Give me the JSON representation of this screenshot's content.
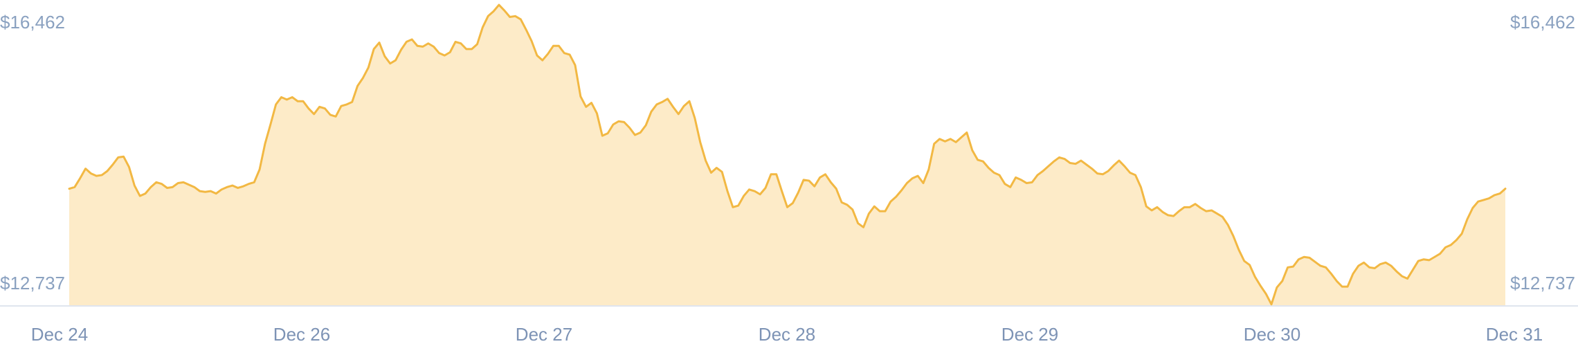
{
  "chart_data": {
    "type": "area",
    "title": "",
    "xlabel": "",
    "ylabel": "",
    "ylim": [
      12737,
      16462
    ],
    "y_tick_labels": {
      "top_left": "$16,462",
      "bottom_left": "$12,737",
      "top_right": "$16,462",
      "bottom_right": "$12,737"
    },
    "x_tick_labels": [
      "Dec 24",
      "Dec 26",
      "Dec 27",
      "Dec 28",
      "Dec 29",
      "Dec 30",
      "Dec 31"
    ],
    "colors": {
      "line": "#f2b843",
      "fill": "#fdebc8",
      "axis_text": "#8aa1c0",
      "baseline": "#dfe5ee"
    },
    "series": [
      {
        "values": [
          14180,
          14200,
          14310,
          14430,
          14370,
          14340,
          14350,
          14400,
          14480,
          14570,
          14580,
          14450,
          14220,
          14090,
          14120,
          14200,
          14260,
          14240,
          14190,
          14200,
          14250,
          14260,
          14230,
          14200,
          14150,
          14140,
          14150,
          14120,
          14170,
          14200,
          14220,
          14190,
          14210,
          14240,
          14260,
          14420,
          14740,
          14980,
          15230,
          15320,
          15290,
          15320,
          15270,
          15270,
          15180,
          15110,
          15200,
          15180,
          15100,
          15080,
          15210,
          15230,
          15260,
          15460,
          15560,
          15690,
          15920,
          16000,
          15830,
          15740,
          15780,
          15910,
          16010,
          16040,
          15960,
          15950,
          15990,
          15950,
          15870,
          15840,
          15880,
          16010,
          15990,
          15920,
          15920,
          15980,
          16190,
          16330,
          16390,
          16470,
          16400,
          16320,
          16330,
          16290,
          16160,
          16020,
          15840,
          15780,
          15860,
          15960,
          15960,
          15870,
          15850,
          15720,
          15330,
          15200,
          15250,
          15120,
          14840,
          14870,
          14980,
          15020,
          15010,
          14940,
          14850,
          14880,
          14970,
          15140,
          15230,
          15260,
          15300,
          15200,
          15110,
          15210,
          15270,
          15060,
          14760,
          14530,
          14380,
          14440,
          14390,
          14150,
          13950,
          13970,
          14090,
          14170,
          14150,
          14110,
          14190,
          14360,
          14360,
          14150,
          13950,
          14000,
          14130,
          14290,
          14280,
          14210,
          14320,
          14360,
          14260,
          14180,
          14010,
          13980,
          13920,
          13750,
          13700,
          13870,
          13960,
          13900,
          13900,
          14020,
          14080,
          14160,
          14250,
          14310,
          14340,
          14250,
          14420,
          14740,
          14800,
          14770,
          14800,
          14760,
          14820,
          14880,
          14660,
          14540,
          14520,
          14440,
          14380,
          14350,
          14240,
          14200,
          14320,
          14290,
          14250,
          14260,
          14350,
          14400,
          14460,
          14520,
          14570,
          14550,
          14500,
          14490,
          14530,
          14480,
          14430,
          14370,
          14360,
          14400,
          14470,
          14530,
          14460,
          14380,
          14350,
          14200,
          13960,
          13910,
          13950,
          13890,
          13850,
          13840,
          13900,
          13950,
          13950,
          13990,
          13940,
          13900,
          13910,
          13870,
          13830,
          13730,
          13590,
          13420,
          13280,
          13230,
          13080,
          12970,
          12870,
          12740,
          12950,
          13030,
          13200,
          13210,
          13300,
          13330,
          13320,
          13270,
          13220,
          13200,
          13120,
          13030,
          12960,
          12960,
          13120,
          13220,
          13260,
          13200,
          13190,
          13240,
          13260,
          13220,
          13150,
          13090,
          13060,
          13170,
          13280,
          13300,
          13290,
          13330,
          13370,
          13450,
          13480,
          13540,
          13620,
          13800,
          13940,
          14020,
          14040,
          14060,
          14100,
          14120,
          14180
        ]
      }
    ]
  }
}
